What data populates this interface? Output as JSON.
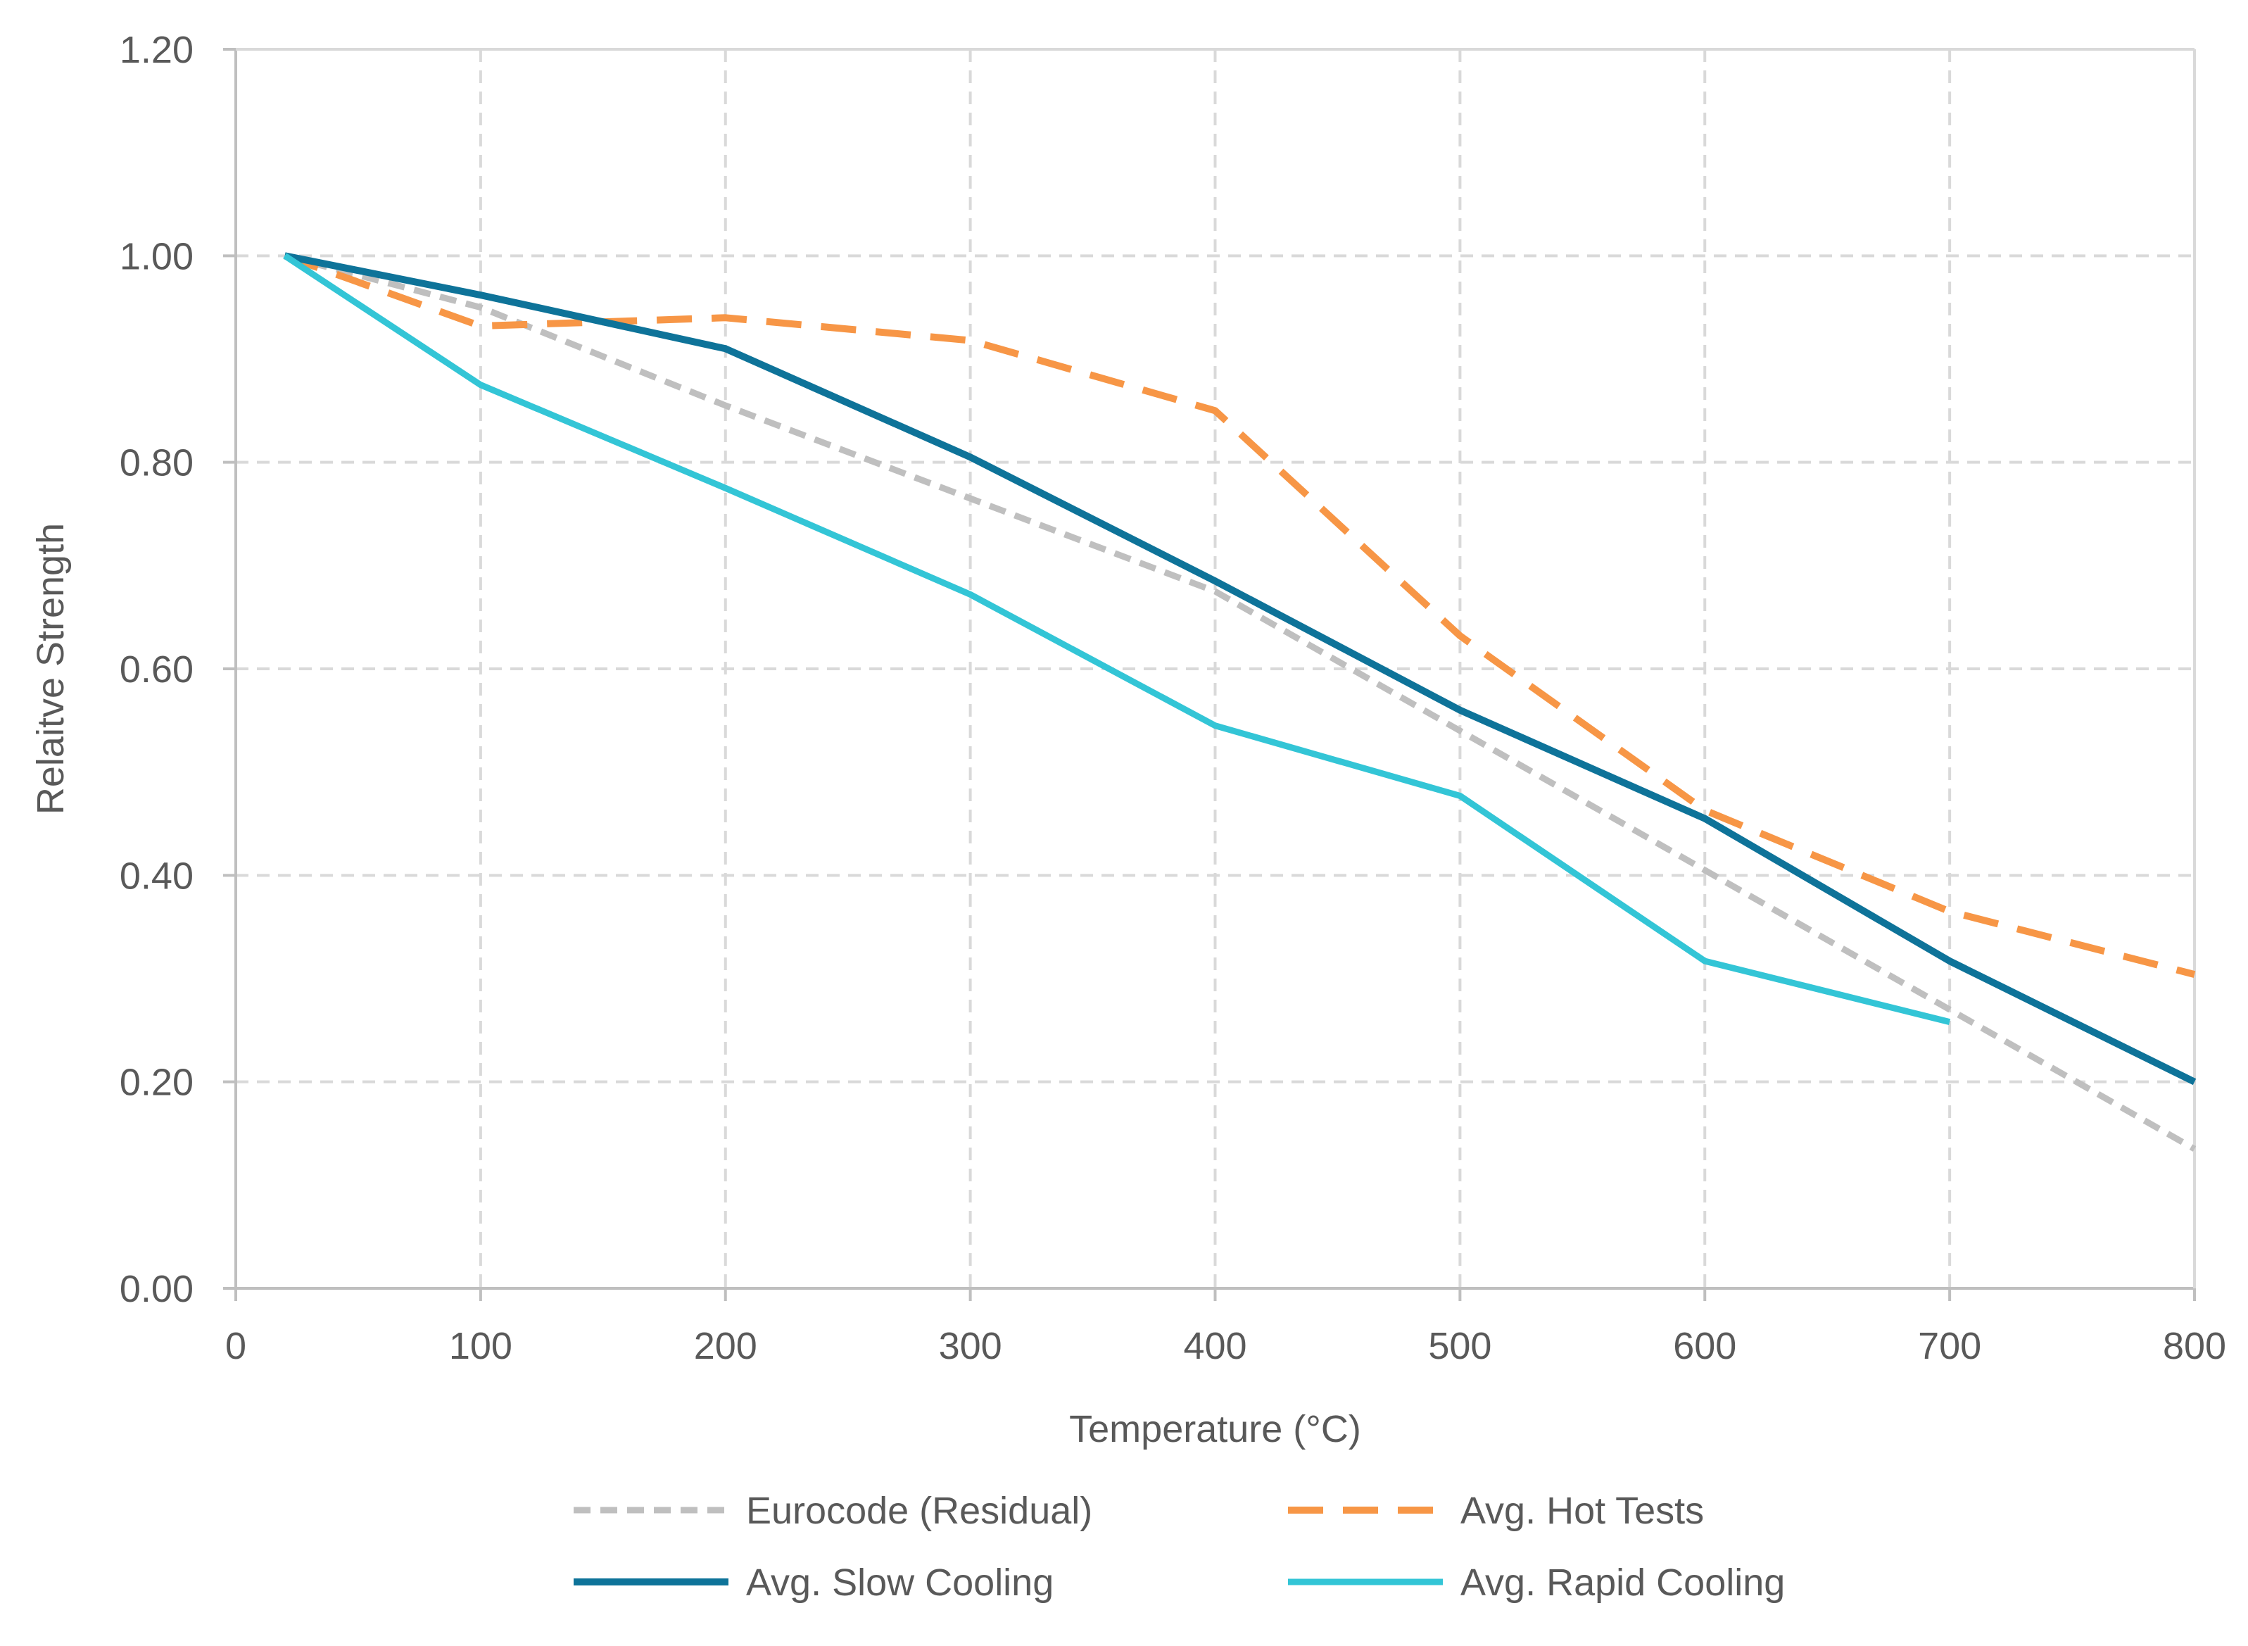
{
  "chart_data": {
    "type": "line",
    "title": "",
    "xlabel": "Temperature (°C)",
    "ylabel": "Relaitve Strength",
    "xlim": [
      0,
      800
    ],
    "ylim": [
      0,
      1.2
    ],
    "x_ticks": [
      0,
      100,
      200,
      300,
      400,
      500,
      600,
      700,
      800
    ],
    "x_tick_labels": [
      "0",
      "100",
      "200",
      "300",
      "400",
      "500",
      "600",
      "700",
      "800"
    ],
    "y_ticks": [
      0,
      0.2,
      0.4,
      0.6,
      0.8,
      1.0,
      1.2
    ],
    "y_tick_labels": [
      "0.00",
      "0.20",
      "0.40",
      "0.60",
      "0.80",
      "1.00",
      "1.20"
    ],
    "grid": true,
    "grid_style": "dashed",
    "legend_position": "bottom",
    "series": [
      {
        "name": "Eurocode (Residual)",
        "color": "#bfbfbf",
        "line_style": "dashed",
        "x": [
          20,
          100,
          200,
          300,
          400,
          500,
          600,
          700,
          800
        ],
        "y": [
          1.0,
          0.95,
          0.855,
          0.765,
          0.675,
          0.54,
          0.405,
          0.27,
          0.135
        ]
      },
      {
        "name": "Avg. Hot Tests",
        "color": "#f79646",
        "line_style": "dashed",
        "x": [
          20,
          100,
          200,
          300,
          400,
          500,
          600,
          700,
          800
        ],
        "y": [
          1.0,
          0.932,
          0.94,
          0.918,
          0.85,
          0.632,
          0.463,
          0.365,
          0.304
        ]
      },
      {
        "name": "Avg. Slow Cooling",
        "color": "#0e7399",
        "line_style": "solid",
        "x": [
          20,
          100,
          200,
          300,
          400,
          500,
          600,
          700,
          800
        ],
        "y": [
          1.0,
          0.962,
          0.91,
          0.805,
          0.685,
          0.56,
          0.455,
          0.317,
          0.2
        ]
      },
      {
        "name": "Avg. Rapid Cooling",
        "color": "#33c5d6",
        "line_style": "solid",
        "x": [
          20,
          100,
          200,
          300,
          400,
          500,
          600,
          700
        ],
        "y": [
          1.0,
          0.875,
          0.775,
          0.672,
          0.545,
          0.477,
          0.317,
          0.258
        ]
      }
    ]
  }
}
